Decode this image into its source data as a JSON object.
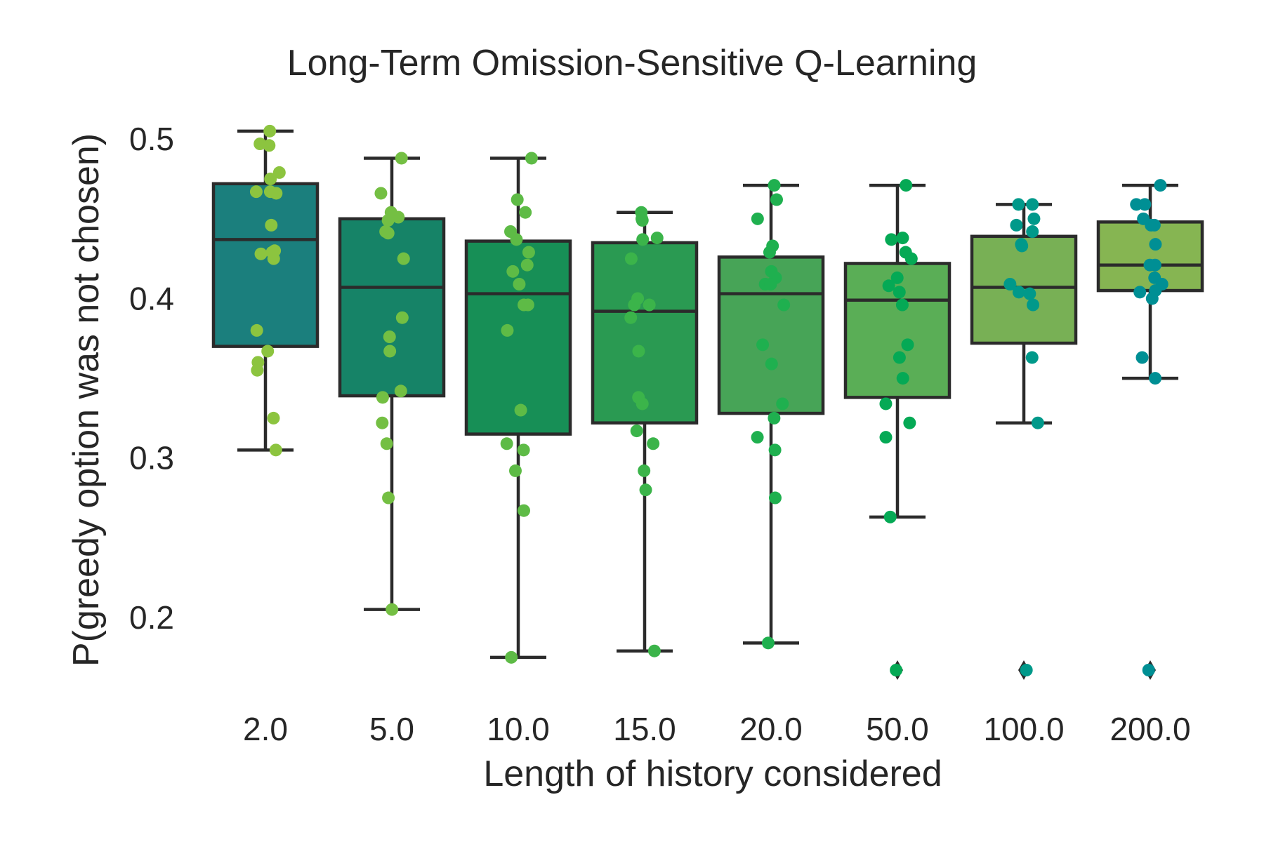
{
  "chart_data": {
    "type": "box",
    "title": "Long-Term Omission-Sensitive Q-Learning",
    "xlabel": "Length of history considered",
    "ylabel": "P(greedy option was not chosen)",
    "ylim": [
      0.145,
      0.53
    ],
    "yticks": [
      0.2,
      0.3,
      0.4,
      0.5
    ],
    "ytick_labels": [
      "0.2",
      "0.3",
      "0.4",
      "0.5"
    ],
    "grid": false,
    "categories": [
      "2.0",
      "5.0",
      "10.0",
      "15.0",
      "20.0",
      "50.0",
      "100.0",
      "200.0"
    ],
    "box_colors": [
      "#1b7f7d",
      "#168367",
      "#178f56",
      "#2a9a52",
      "#47a457",
      "#5aae56",
      "#78b055",
      "#86b552"
    ],
    "point_colors": [
      "#8cc43f",
      "#74bf43",
      "#5ebb46",
      "#3bb44a",
      "#1fb04f",
      "#05a955",
      "#00998a",
      "#008f94"
    ],
    "boxes": [
      {
        "q1": 0.37,
        "median": 0.437,
        "q3": 0.472,
        "whisker_low": 0.305,
        "whisker_high": 0.505,
        "outliers": []
      },
      {
        "q1": 0.339,
        "median": 0.407,
        "q3": 0.45,
        "whisker_low": 0.205,
        "whisker_high": 0.488,
        "outliers": []
      },
      {
        "q1": 0.315,
        "median": 0.403,
        "q3": 0.436,
        "whisker_low": 0.175,
        "whisker_high": 0.488,
        "outliers": []
      },
      {
        "q1": 0.322,
        "median": 0.392,
        "q3": 0.435,
        "whisker_low": 0.179,
        "whisker_high": 0.454,
        "outliers": []
      },
      {
        "q1": 0.328,
        "median": 0.403,
        "q3": 0.426,
        "whisker_low": 0.184,
        "whisker_high": 0.471,
        "outliers": []
      },
      {
        "q1": 0.338,
        "median": 0.399,
        "q3": 0.422,
        "whisker_low": 0.263,
        "whisker_high": 0.471,
        "outliers": [
          0.167
        ]
      },
      {
        "q1": 0.372,
        "median": 0.407,
        "q3": 0.439,
        "whisker_low": 0.322,
        "whisker_high": 0.459,
        "outliers": [
          0.167
        ]
      },
      {
        "q1": 0.405,
        "median": 0.421,
        "q3": 0.448,
        "whisker_low": 0.35,
        "whisker_high": 0.471,
        "outliers": [
          0.167
        ]
      }
    ],
    "points": [
      [
        0.505,
        0.497,
        0.496,
        0.479,
        0.475,
        0.467,
        0.467,
        0.466,
        0.446,
        0.43,
        0.429,
        0.428,
        0.425,
        0.38,
        0.367,
        0.36,
        0.355,
        0.325,
        0.305
      ],
      [
        0.488,
        0.466,
        0.454,
        0.451,
        0.449,
        0.442,
        0.441,
        0.425,
        0.388,
        0.376,
        0.367,
        0.342,
        0.338,
        0.322,
        0.309,
        0.275,
        0.205
      ],
      [
        0.488,
        0.462,
        0.454,
        0.442,
        0.437,
        0.429,
        0.421,
        0.417,
        0.409,
        0.396,
        0.396,
        0.38,
        0.33,
        0.309,
        0.305,
        0.292,
        0.267,
        0.175
      ],
      [
        0.454,
        0.45,
        0.449,
        0.438,
        0.437,
        0.425,
        0.4,
        0.396,
        0.396,
        0.388,
        0.367,
        0.338,
        0.334,
        0.317,
        0.309,
        0.292,
        0.28,
        0.179
      ],
      [
        0.471,
        0.462,
        0.45,
        0.433,
        0.429,
        0.417,
        0.413,
        0.409,
        0.409,
        0.396,
        0.371,
        0.359,
        0.334,
        0.325,
        0.313,
        0.305,
        0.275,
        0.184
      ],
      [
        0.471,
        0.438,
        0.437,
        0.429,
        0.425,
        0.413,
        0.408,
        0.404,
        0.396,
        0.371,
        0.363,
        0.35,
        0.334,
        0.322,
        0.313,
        0.263,
        0.167
      ],
      [
        0.459,
        0.459,
        0.45,
        0.446,
        0.442,
        0.434,
        0.433,
        0.409,
        0.404,
        0.403,
        0.396,
        0.363,
        0.322,
        0.167
      ],
      [
        0.471,
        0.459,
        0.459,
        0.45,
        0.446,
        0.446,
        0.434,
        0.421,
        0.421,
        0.413,
        0.409,
        0.405,
        0.404,
        0.4,
        0.363,
        0.35,
        0.167
      ]
    ]
  }
}
